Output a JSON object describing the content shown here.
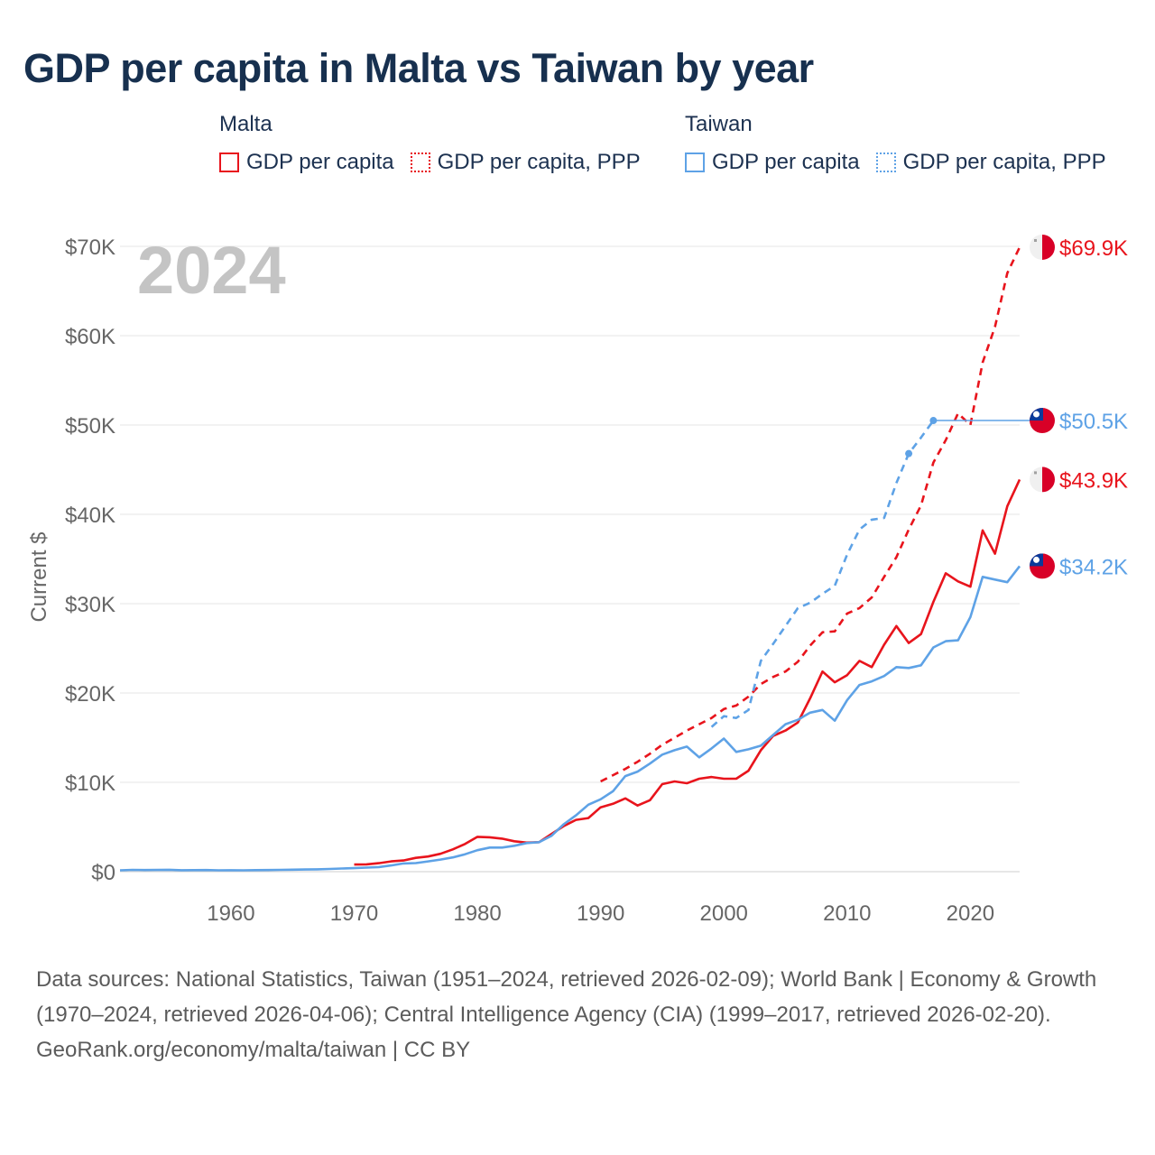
{
  "title": "GDP per capita in Malta vs Taiwan by year",
  "legend": {
    "malta": {
      "name": "Malta",
      "gdp": "GDP per capita",
      "ppp": "GDP per capita, PPP"
    },
    "taiwan": {
      "name": "Taiwan",
      "gdp": "GDP per capita",
      "ppp": "GDP per capita, PPP"
    }
  },
  "colors": {
    "malta": "#e8141c",
    "taiwan": "#5ea2e6",
    "grid": "#e6e6e6",
    "year": "#c4c4c4"
  },
  "chart_data": {
    "type": "line",
    "current_year": "2024",
    "ylabel": "Current $",
    "xlim": [
      1951,
      2024
    ],
    "ylim": [
      0,
      70000
    ],
    "y_ticks": [
      {
        "value": 0,
        "label": "$0"
      },
      {
        "value": 10000,
        "label": "$10K"
      },
      {
        "value": 20000,
        "label": "$20K"
      },
      {
        "value": 30000,
        "label": "$30K"
      },
      {
        "value": 40000,
        "label": "$40K"
      },
      {
        "value": 50000,
        "label": "$50K"
      },
      {
        "value": 60000,
        "label": "$60K"
      },
      {
        "value": 70000,
        "label": "$70K"
      }
    ],
    "x_ticks": [
      {
        "value": 1960,
        "label": "1960"
      },
      {
        "value": 1970,
        "label": "1970"
      },
      {
        "value": 1980,
        "label": "1980"
      },
      {
        "value": 1990,
        "label": "1990"
      },
      {
        "value": 2000,
        "label": "2000"
      },
      {
        "value": 2010,
        "label": "2010"
      },
      {
        "value": 2020,
        "label": "2020"
      }
    ],
    "end_labels": [
      {
        "series": "malta_ppp",
        "text": "$69.9K"
      },
      {
        "series": "taiwan_ppp",
        "text": "$50.5K"
      },
      {
        "series": "malta_gdp",
        "text": "$43.9K"
      },
      {
        "series": "taiwan_gdp",
        "text": "$34.2K"
      }
    ],
    "series": [
      {
        "id": "malta_gdp",
        "name": "Malta GDP per capita",
        "country": "malta",
        "dash": "solid",
        "x": [
          1970,
          1971,
          1972,
          1973,
          1974,
          1975,
          1976,
          1977,
          1978,
          1979,
          1980,
          1981,
          1982,
          1983,
          1984,
          1985,
          1986,
          1987,
          1988,
          1989,
          1990,
          1991,
          1992,
          1993,
          1994,
          1995,
          1996,
          1997,
          1998,
          1999,
          2000,
          2001,
          2002,
          2003,
          2004,
          2005,
          2006,
          2007,
          2008,
          2009,
          2010,
          2011,
          2012,
          2013,
          2014,
          2015,
          2016,
          2017,
          2018,
          2019,
          2020,
          2021,
          2022,
          2023,
          2024
        ],
        "y": [
          800,
          820,
          950,
          1150,
          1250,
          1550,
          1700,
          2000,
          2500,
          3100,
          3900,
          3850,
          3700,
          3400,
          3250,
          3300,
          4200,
          5100,
          5800,
          6000,
          7200,
          7600,
          8200,
          7400,
          8000,
          9800,
          10100,
          9900,
          10400,
          10600,
          10400,
          10400,
          11300,
          13600,
          15200,
          15800,
          16700,
          19400,
          22400,
          21200,
          22000,
          23600,
          22900,
          25400,
          27500,
          25600,
          26600,
          30200,
          33400,
          32500,
          31900,
          38200,
          35600,
          40900,
          43900
        ]
      },
      {
        "id": "malta_ppp",
        "name": "Malta GDP per capita, PPP",
        "country": "malta",
        "dash": "dashed",
        "x": [
          1990,
          1991,
          1992,
          1993,
          1994,
          1995,
          1996,
          1997,
          1998,
          1999,
          2000,
          2001,
          2002,
          2003,
          2004,
          2005,
          2006,
          2007,
          2008,
          2009,
          2010,
          2011,
          2012,
          2013,
          2014,
          2015,
          2016,
          2017,
          2018,
          2019,
          2020,
          2021,
          2022,
          2023,
          2024
        ],
        "y": [
          10100,
          10800,
          11500,
          12300,
          13200,
          14200,
          15000,
          15800,
          16500,
          17200,
          18200,
          18600,
          19600,
          21000,
          21800,
          22400,
          23500,
          25300,
          26800,
          26900,
          28900,
          29500,
          30700,
          33000,
          35200,
          38300,
          41000,
          45800,
          48300,
          51300,
          50000,
          57000,
          61000,
          67000,
          69900
        ]
      },
      {
        "id": "taiwan_gdp",
        "name": "Taiwan GDP per capita",
        "country": "taiwan",
        "dash": "solid",
        "x": [
          1951,
          1952,
          1953,
          1954,
          1955,
          1956,
          1957,
          1958,
          1959,
          1960,
          1961,
          1962,
          1963,
          1964,
          1965,
          1966,
          1967,
          1968,
          1969,
          1970,
          1971,
          1972,
          1973,
          1974,
          1975,
          1976,
          1977,
          1978,
          1979,
          1980,
          1981,
          1982,
          1983,
          1984,
          1985,
          1986,
          1987,
          1988,
          1989,
          1990,
          1991,
          1992,
          1993,
          1994,
          1995,
          1996,
          1997,
          1998,
          1999,
          2000,
          2001,
          2002,
          2003,
          2004,
          2005,
          2006,
          2007,
          2008,
          2009,
          2010,
          2011,
          2012,
          2013,
          2014,
          2015,
          2016,
          2017,
          2018,
          2019,
          2020,
          2021,
          2022,
          2023,
          2024
        ],
        "y": [
          150,
          200,
          180,
          190,
          210,
          160,
          170,
          180,
          150,
          160,
          150,
          170,
          180,
          200,
          220,
          240,
          260,
          300,
          350,
          390,
          450,
          520,
          700,
          920,
          960,
          1150,
          1350,
          1600,
          1950,
          2400,
          2700,
          2700,
          2900,
          3200,
          3300,
          4000,
          5300,
          6300,
          7500,
          8100,
          9000,
          10700,
          11200,
          12100,
          13100,
          13600,
          14000,
          12800,
          13800,
          14900,
          13400,
          13700,
          14100,
          15300,
          16500,
          17000,
          17800,
          18100,
          16900,
          19200,
          20900,
          21300,
          21900,
          22900,
          22800,
          23100,
          25100,
          25800,
          25900,
          28500,
          33000,
          32700,
          32400,
          34200
        ]
      },
      {
        "id": "taiwan_ppp",
        "name": "Taiwan GDP per capita, PPP",
        "country": "taiwan",
        "dash": "dashed",
        "x": [
          1999,
          2000,
          2001,
          2002,
          2003,
          2004,
          2005,
          2006,
          2007,
          2008,
          2009,
          2010,
          2011,
          2012,
          2013,
          2014,
          2015,
          2016,
          2017
        ],
        "y": [
          16200,
          17400,
          17200,
          18100,
          23600,
          25500,
          27500,
          29500,
          30100,
          31100,
          32000,
          35500,
          38300,
          39400,
          39600,
          43500,
          46800,
          48600,
          50500
        ],
        "markers": [
          2015,
          2017
        ],
        "extend_flat": true
      }
    ]
  }
}
